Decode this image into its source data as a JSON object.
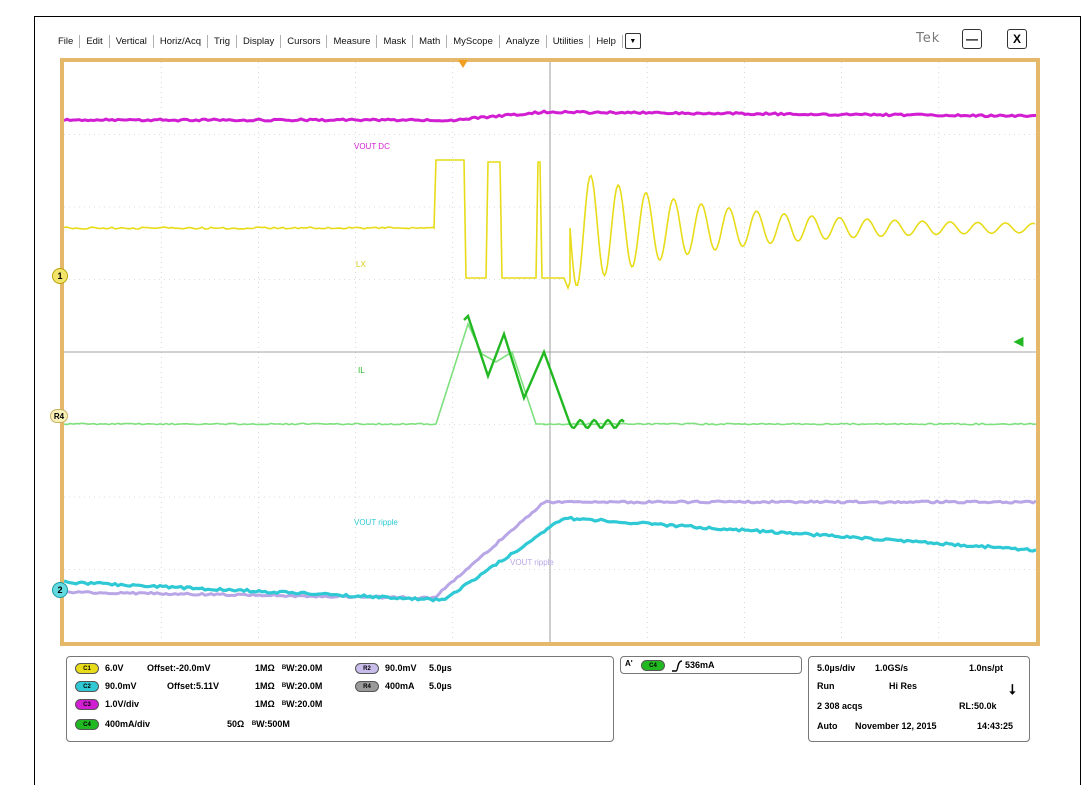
{
  "menu": [
    "File",
    "Edit",
    "Vertical",
    "Horiz/Acq",
    "Trig",
    "Display",
    "Cursors",
    "Measure",
    "Mask",
    "Math",
    "MyScope",
    "Analyze",
    "Utilities",
    "Help"
  ],
  "icons": {
    "dropdown": "chevron-down-icon",
    "minimize": "minimize-icon",
    "close": "close-icon",
    "trigger": "rising-edge-icon"
  },
  "brand": "Tek",
  "window": {
    "minimize": "—",
    "close": "X"
  },
  "markers": {
    "ch1": "1",
    "ref4": "R4",
    "ch2": "2"
  },
  "trace_labels": {
    "vout_dc": "VOUT DC",
    "lx": "LX",
    "il": "IL",
    "vout_ripple": "VOUT ripple",
    "vout_ripple_ref": "VOUT ripple"
  },
  "colors": {
    "ch1": "#e8dc1a",
    "ch2": "#2ec9d4",
    "ch3": "#d21ed2",
    "ch4": "#22b822",
    "ref2": "#b8a6e6",
    "ref4": "#7ee07e",
    "frame": "#e6b86a",
    "grid": "#bdbdbd"
  },
  "channels": [
    {
      "badge": "C1",
      "scale": "6.0V",
      "offset": "Offset:-20.0mV",
      "coupling": "1MΩ",
      "bw": "ᴮW:20.0M",
      "color": "#e8dc1a"
    },
    {
      "badge": "C2",
      "scale": "90.0mV",
      "offset": "Offset:5.11V",
      "coupling": "1MΩ",
      "bw": "ᴮW:20.0M",
      "color": "#2ec9d4"
    },
    {
      "badge": "C3",
      "scale": "1.0V/div",
      "offset": "",
      "coupling": "1MΩ",
      "bw": "ᴮW:20.0M",
      "color": "#d21ed2"
    },
    {
      "badge": "C4",
      "scale": "400mA/div",
      "offset": "",
      "coupling": "50Ω",
      "bw": "ᴮW:500M",
      "color": "#22b822"
    }
  ],
  "refs": [
    {
      "badge": "R2",
      "scale": "90.0mV",
      "time": "5.0µs",
      "color": "#c7bcea"
    },
    {
      "badge": "R4",
      "scale": "400mA",
      "time": "5.0µs",
      "color": "#9a9a9a"
    }
  ],
  "trigger": {
    "prefix": "A'",
    "badge": "C4",
    "level": "536mA"
  },
  "acq": {
    "timebase": "5.0µs/div",
    "sample_rate": "1.0GS/s",
    "resolution": "1.0ns/pt",
    "state": "Run",
    "mode": "Hi Res",
    "acqs": "2 308 acqs",
    "record_length": "RL:50.0k",
    "trigger_mode": "Auto",
    "date": "November 12, 2015",
    "time": "14:43:25"
  }
}
